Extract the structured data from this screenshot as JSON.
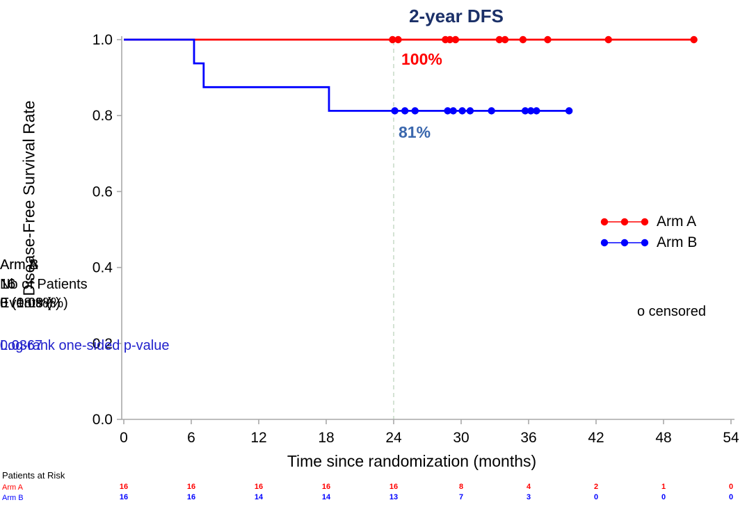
{
  "title": "2-year DFS",
  "annotations": {
    "arm_a_rate": "100%",
    "arm_b_rate": "81%"
  },
  "legend": {
    "items": [
      {
        "label": "Arm A",
        "color": "#ff0000"
      },
      {
        "label": "Arm B",
        "color": "#0000ff"
      }
    ],
    "censored_note": "o censored"
  },
  "stats_table": {
    "col_headers": [
      "Arm A",
      "Arm B"
    ],
    "rows": [
      {
        "label": "Nb of Patients",
        "arm_a": "16",
        "arm_b": "16"
      },
      {
        "label": "Events (%)",
        "arm_a": "0 (0.0%)",
        "arm_b": "3 (18.8%)"
      }
    ],
    "pvalue_label": "Log-rank one-sided p-value",
    "pvalue": "0.0367"
  },
  "at_risk": {
    "title": "Patients at Risk",
    "rows": [
      {
        "label": "Arm A",
        "color": "#ff0000",
        "values": [
          "16",
          "16",
          "16",
          "16",
          "16",
          "8",
          "4",
          "2",
          "1",
          "0"
        ]
      },
      {
        "label": "Arm B",
        "color": "#0000ff",
        "values": [
          "16",
          "16",
          "14",
          "14",
          "13",
          "7",
          "3",
          "0",
          "0",
          "0"
        ]
      }
    ]
  },
  "colors": {
    "title": "#1b3068",
    "rate_a": "#ff0000",
    "rate_b": "#3a67ad",
    "axis": "#a8a8a8",
    "reference_line": "#c9dcc9",
    "pvalue_text": "#2222cc"
  },
  "chart_data": {
    "type": "line",
    "variant": "kaplan_meier_step",
    "title": "2-year DFS",
    "xlabel": "Time since randomization (months)",
    "ylabel": "Disease-Free Survival Rate",
    "xlim": [
      0,
      54
    ],
    "xticks": [
      0,
      6,
      12,
      18,
      24,
      30,
      36,
      42,
      48,
      54
    ],
    "ylim": [
      0.0,
      1.0
    ],
    "yticks": [
      "0.0",
      "0.2",
      "0.4",
      "0.6",
      "0.8",
      "1.0"
    ],
    "reference_line_x": 24,
    "grid": false,
    "legend_position": "right",
    "series": [
      {
        "name": "Arm A",
        "color": "#ff0000",
        "two_year_rate_pct": 100,
        "n_patients": 16,
        "n_events": 0,
        "steps": [
          [
            0,
            1.0
          ],
          [
            50.7,
            1.0
          ]
        ],
        "censored_x": [
          23.9,
          24.4,
          28.6,
          29.0,
          29.5,
          33.4,
          33.9,
          35.5,
          37.7,
          43.1,
          50.7
        ],
        "censored_y": 1.0
      },
      {
        "name": "Arm B",
        "color": "#0000ff",
        "two_year_rate_pct": 81,
        "n_patients": 16,
        "n_events": 3,
        "steps": [
          [
            0,
            1.0
          ],
          [
            6.25,
            1.0
          ],
          [
            6.25,
            0.9375
          ],
          [
            7.1,
            0.9375
          ],
          [
            7.1,
            0.875
          ],
          [
            18.25,
            0.875
          ],
          [
            18.25,
            0.8125
          ],
          [
            39.6,
            0.8125
          ]
        ],
        "censored_x": [
          24.1,
          25.0,
          25.9,
          28.8,
          29.3,
          30.1,
          30.8,
          32.7,
          35.7,
          36.2,
          36.7,
          39.6
        ],
        "censored_y": 0.8125
      }
    ]
  }
}
